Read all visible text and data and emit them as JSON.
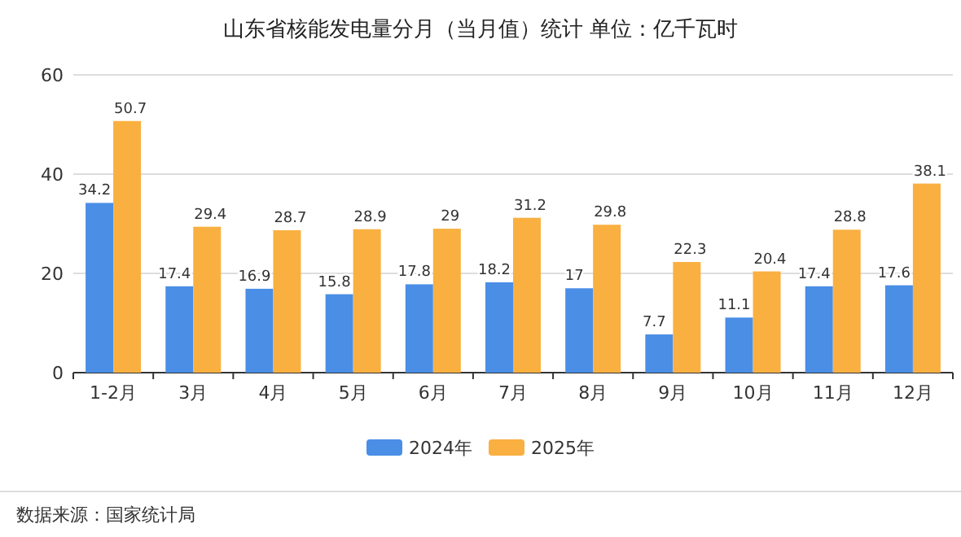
{
  "chart_data": {
    "type": "bar",
    "title": "山东省核能发电量分月（当月值）统计  单位：亿千瓦时",
    "categories": [
      "1-2月",
      "3月",
      "4月",
      "5月",
      "6月",
      "7月",
      "8月",
      "9月",
      "10月",
      "11月",
      "12月"
    ],
    "series": [
      {
        "name": "2024年",
        "color": "#4a8ee6",
        "values": [
          34.2,
          17.4,
          16.9,
          15.8,
          17.8,
          18.2,
          17,
          7.7,
          11.1,
          17.4,
          17.6
        ]
      },
      {
        "name": "2025年",
        "color": "#f9b041",
        "values": [
          50.7,
          29.4,
          28.7,
          28.9,
          29,
          31.2,
          29.8,
          22.3,
          20.4,
          28.8,
          38.1
        ]
      }
    ],
    "ylim": [
      0,
      60
    ],
    "yticks": [
      0,
      20,
      40,
      60
    ],
    "grid": "y",
    "legend": "bottom",
    "data_labels": true,
    "annotations": [
      "数据来源：国家统计局"
    ]
  }
}
